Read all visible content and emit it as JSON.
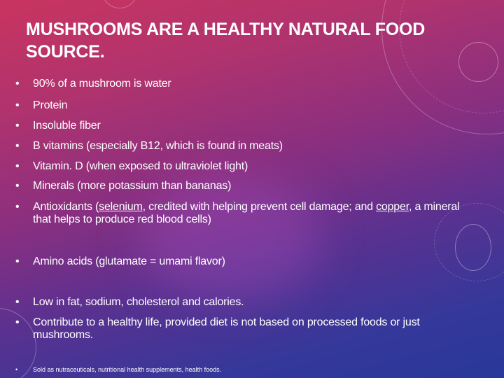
{
  "slide": {
    "title": "MUSHROOMS ARE A HEALTHY NATURAL FOOD SOURCE.",
    "bullet_char": "•",
    "bullets": [
      {
        "text": "90% of a mushroom is water"
      },
      {
        "text": "Protein"
      },
      {
        "text": "Insoluble fiber"
      },
      {
        "text": "B vitamins (especially B12, which is found in meats)"
      },
      {
        "text": "Vitamin. D (when exposed to ultraviolet light)"
      },
      {
        "text": "Minerals (more potassium than bananas)"
      },
      {
        "parts": [
          "Antioxidants (",
          "selenium",
          ", credited with helping prevent cell damage; and ",
          "copper",
          ", a mineral that helps to produce red blood cells)"
        ]
      },
      {
        "text": "Amino acids (glutamate = umami flavor)"
      },
      {
        "text": "Low in fat, sodium, cholesterol and calories."
      },
      {
        "text": "Contribute to a healthy life, provided diet is not based on processed foods or just mushrooms."
      },
      {
        "text": "Sold as nutraceuticals, nutritional health supplements, health foods."
      }
    ]
  },
  "colors": {
    "top": "#c93460",
    "middle": "#8a2f80",
    "bottom": "#28389a",
    "text": "#ffffff"
  }
}
